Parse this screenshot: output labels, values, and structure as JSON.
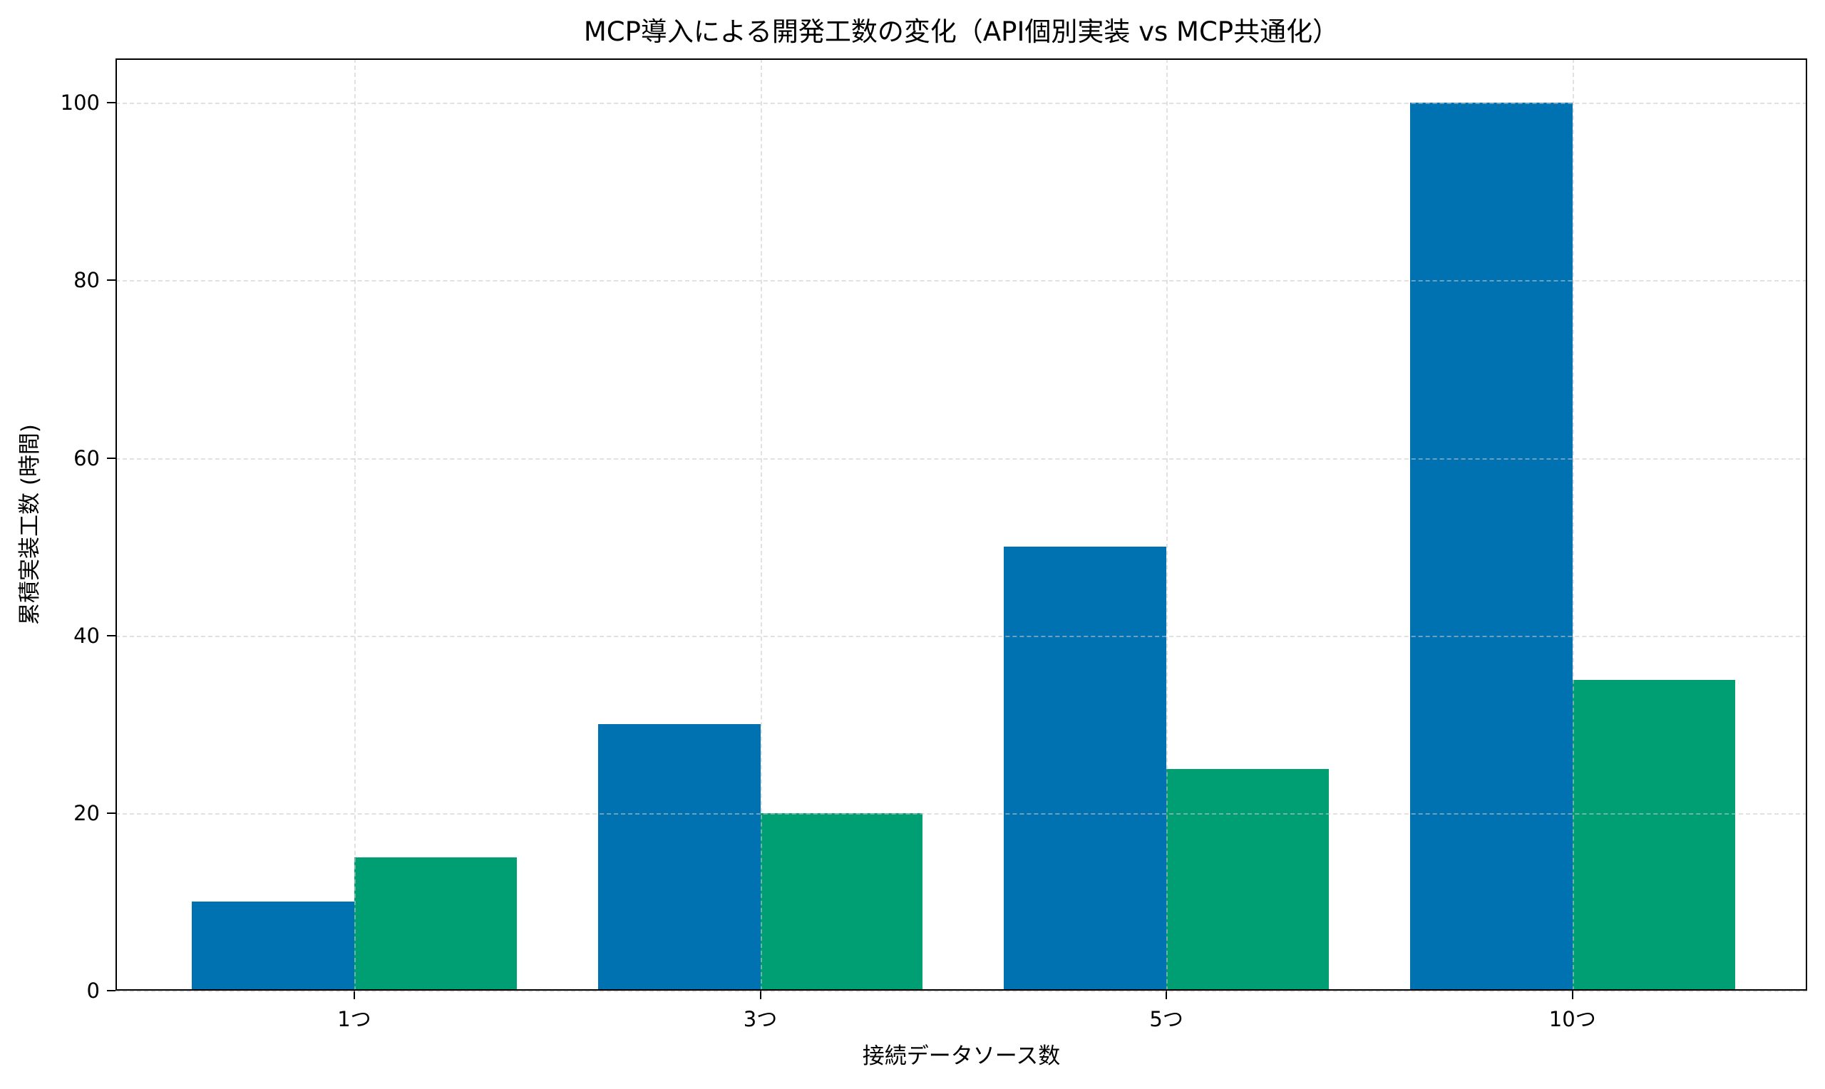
{
  "chart_data": {
    "type": "bar",
    "title": "MCP導入による開発工数の変化（API個別実装 vs MCP共通化）",
    "xlabel": "接続データソース数",
    "ylabel": "累積実装工数 (時間)",
    "categories": [
      "1つ",
      "3つ",
      "5つ",
      "10つ"
    ],
    "series": [
      {
        "name": "API個別実装",
        "color": "#0072B2",
        "values": [
          10,
          30,
          50,
          100
        ]
      },
      {
        "name": "MCP共通化",
        "color": "#009E73",
        "values": [
          15,
          20,
          25,
          35
        ]
      }
    ],
    "ylim": [
      0,
      105
    ],
    "yticks": [
      0,
      20,
      40,
      60,
      80,
      100
    ],
    "grid": true,
    "grid_style": "dashed",
    "legend": null
  }
}
